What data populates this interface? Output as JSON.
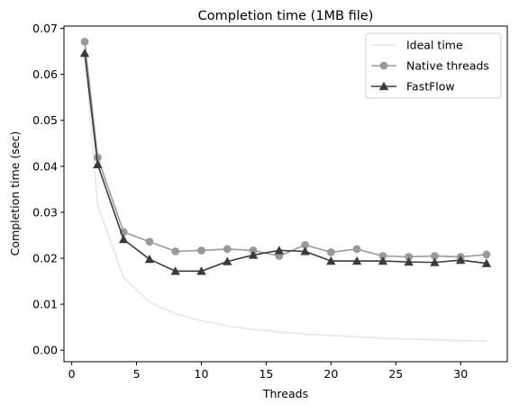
{
  "chart_data": {
    "type": "line",
    "title": "Completion time (1MB file)",
    "xlabel": "Threads",
    "ylabel": "Completion time (sec)",
    "xlim": [
      -0.6,
      33.6
    ],
    "ylim": [
      -0.0025,
      0.0705
    ],
    "xticks": [
      0,
      5,
      10,
      15,
      20,
      25,
      30
    ],
    "yticks": [
      0.0,
      0.01,
      0.02,
      0.03,
      0.04,
      0.05,
      0.06,
      0.07
    ],
    "ytick_labels": [
      "0.00",
      "0.01",
      "0.02",
      "0.03",
      "0.04",
      "0.05",
      "0.06",
      "0.07"
    ],
    "grid": false,
    "legend_position": "top-right",
    "series": [
      {
        "name": "Ideal time",
        "color": "#e6e6e6",
        "marker": "none",
        "x": [
          1,
          2,
          4,
          6,
          8,
          10,
          12,
          14,
          16,
          18,
          20,
          22,
          24,
          26,
          28,
          30,
          32
        ],
        "y": [
          0.0648,
          0.0316,
          0.0158,
          0.0105,
          0.0079,
          0.0064,
          0.0053,
          0.0045,
          0.004,
          0.0035,
          0.0032,
          0.0029,
          0.0026,
          0.0024,
          0.0023,
          0.0021,
          0.002
        ]
      },
      {
        "name": "Native threads",
        "color": "#999999",
        "marker": "circle",
        "x": [
          1,
          2,
          4,
          6,
          8,
          10,
          12,
          14,
          16,
          18,
          20,
          22,
          24,
          26,
          28,
          30,
          32
        ],
        "y": [
          0.0671,
          0.0419,
          0.0257,
          0.0236,
          0.0215,
          0.0217,
          0.022,
          0.0217,
          0.0205,
          0.0229,
          0.0213,
          0.022,
          0.0205,
          0.0203,
          0.0205,
          0.0203,
          0.0208
        ]
      },
      {
        "name": "FastFlow",
        "color": "#3b3b3b",
        "marker": "triangle",
        "x": [
          1,
          2,
          4,
          6,
          8,
          10,
          12,
          14,
          16,
          18,
          20,
          22,
          24,
          26,
          28,
          30,
          32
        ],
        "y": [
          0.0646,
          0.0404,
          0.0241,
          0.0198,
          0.0172,
          0.0172,
          0.0193,
          0.0207,
          0.0217,
          0.0215,
          0.0194,
          0.0194,
          0.0194,
          0.0192,
          0.0191,
          0.0196,
          0.0189
        ]
      }
    ]
  }
}
